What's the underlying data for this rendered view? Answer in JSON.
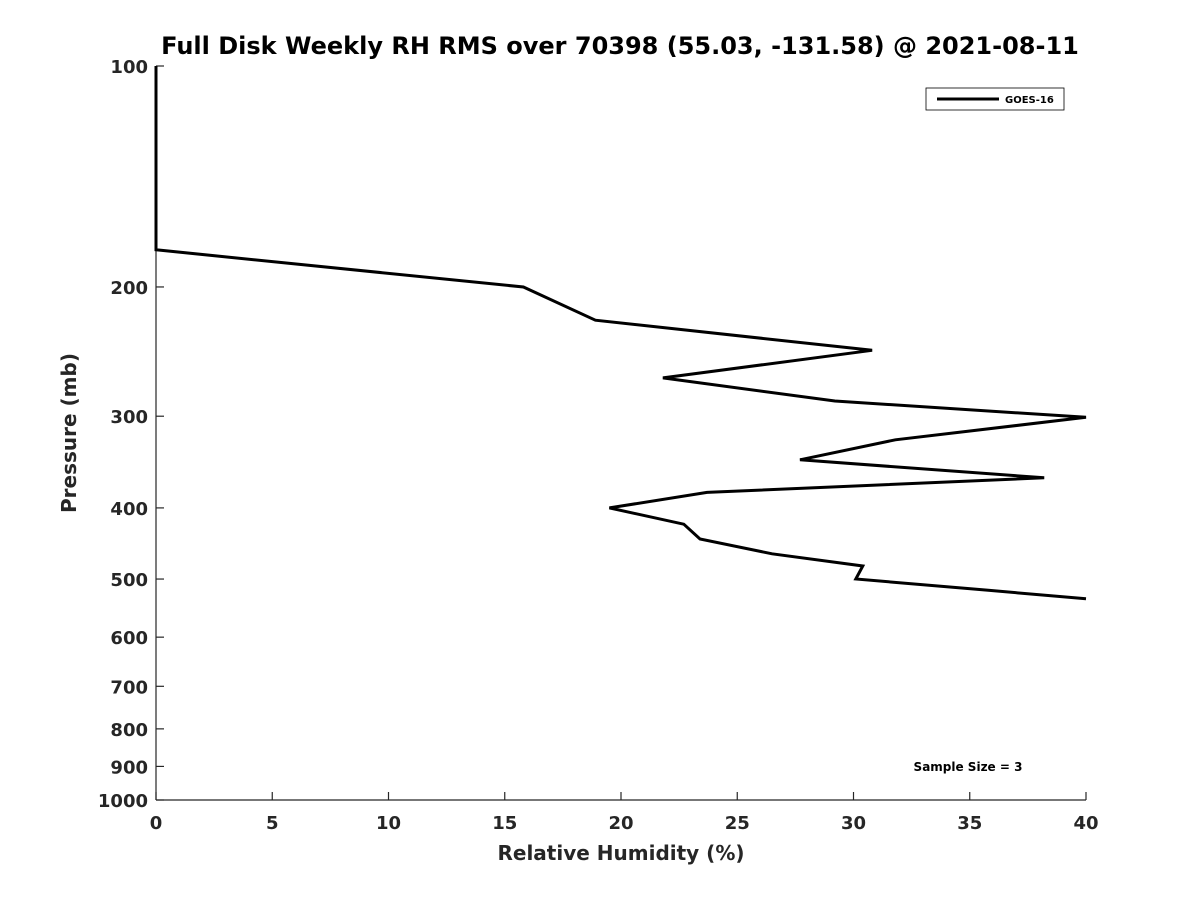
{
  "chart_data": {
    "type": "line",
    "title": "Full Disk Weekly RH RMS over 70398 (55.03, -131.58) @ 2021-08-11",
    "xlabel": "Relative Humidity (%)",
    "ylabel": "Pressure (mb)",
    "xlim": [
      0,
      40
    ],
    "ylim": [
      100,
      1000
    ],
    "y_scale": "log",
    "y_reversed": true,
    "grid": false,
    "legend_position": "top-right",
    "x_ticks": [
      0,
      5,
      10,
      15,
      20,
      25,
      30,
      35,
      40
    ],
    "y_ticks": [
      100,
      200,
      300,
      400,
      500,
      600,
      700,
      800,
      900,
      1000
    ],
    "annotation": "Sample Size = 3",
    "series": [
      {
        "name": "GOES-16",
        "color": "#000000",
        "x": [
          0,
          0,
          0,
          0,
          15.8,
          18.9,
          30.8,
          21.8,
          29.2,
          40,
          31.8,
          27.7,
          38.2,
          23.7,
          19.5,
          22.7,
          23.4,
          26.5,
          30.4,
          30.1,
          35.8,
          40
        ],
        "y": [
          100,
          115,
          135,
          178,
          200,
          222,
          244,
          266,
          286,
          301,
          323,
          344,
          364,
          381,
          400,
          421,
          441,
          462,
          480,
          500,
          518,
          532
        ]
      }
    ]
  }
}
